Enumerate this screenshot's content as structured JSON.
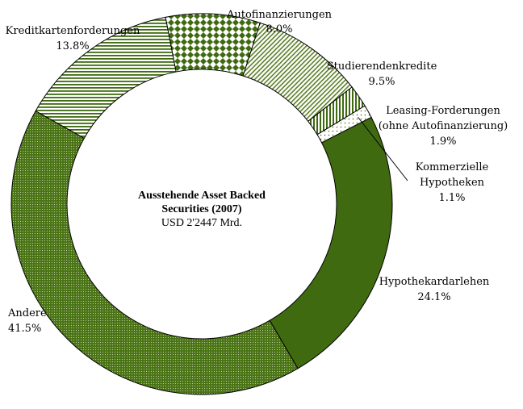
{
  "chart_data": {
    "type": "pie",
    "center_title": [
      "Ausstehende Asset Backed",
      "Securities (2007)"
    ],
    "center_value": "USD 2'2447 Mrd.",
    "slices": [
      {
        "name": "Autofinanzierungen",
        "value": 8.0,
        "value_label": "8.0%",
        "pattern": "diamond"
      },
      {
        "name": "Studierendenkredite",
        "value": 9.5,
        "value_label": "9.5%",
        "pattern": "diagonal"
      },
      {
        "name": "Leasing-Forderungen (ohne Autofinanzierung)",
        "lines": [
          "Leasing-Forderungen",
          "(ohne Autofinanzierung)"
        ],
        "value": 1.9,
        "value_label": "1.9%",
        "pattern": "vertical"
      },
      {
        "name": "Kommerzielle Hypotheken",
        "lines": [
          "Kommerzielle",
          "Hypotheken"
        ],
        "value": 1.1,
        "value_label": "1.1%",
        "pattern": "sparse-dots"
      },
      {
        "name": "Hypothekardarlehen",
        "value": 24.1,
        "value_label": "24.1%",
        "pattern": "solid"
      },
      {
        "name": "Andere",
        "value": 41.5,
        "value_label": "41.5%",
        "pattern": "dots"
      },
      {
        "name": "Kreditkartenforderungen",
        "value": 13.8,
        "value_label": "13.8%",
        "pattern": "horizontal"
      }
    ],
    "colors": {
      "green": "#3f6a10",
      "light_green": "#6f8f3a",
      "outline": "#000000",
      "background": "#ffffff"
    }
  }
}
